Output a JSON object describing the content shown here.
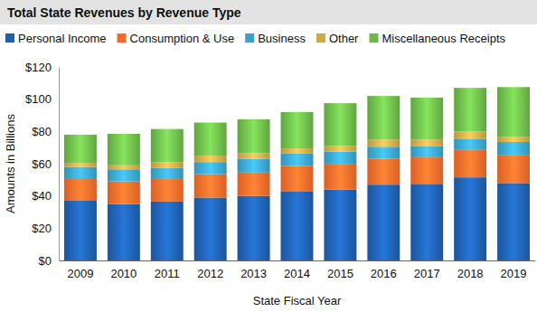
{
  "chart_data": {
    "type": "bar",
    "stacked": true,
    "grid": false,
    "title": "Total State Revenues by Revenue Type",
    "xlabel": "State Fiscal Year",
    "ylabel": "Amounts in Billions",
    "categories": [
      "2009",
      "2010",
      "2011",
      "2012",
      "2013",
      "2014",
      "2015",
      "2016",
      "2017",
      "2018",
      "2019"
    ],
    "series": [
      {
        "name": "Personal Income",
        "color": "#1f5fae",
        "values": [
          37,
          35,
          36.5,
          39,
          40,
          43,
          44,
          47,
          47.5,
          51.5,
          48
        ]
      },
      {
        "name": "Consumption & Use",
        "color": "#f26b2a",
        "values": [
          14,
          14,
          14,
          14.5,
          14.5,
          15.5,
          15.5,
          16,
          16.5,
          17,
          17.5
        ]
      },
      {
        "name": "Business",
        "color": "#3aa3c9",
        "values": [
          7,
          7.5,
          7,
          7.5,
          8.5,
          8,
          8,
          7.5,
          7,
          7,
          8
        ]
      },
      {
        "name": "Other",
        "color": "#c9a94a",
        "values": [
          2.5,
          2.5,
          3.5,
          4,
          3.5,
          3,
          3.5,
          4.5,
          4,
          4.5,
          3
        ]
      },
      {
        "name": "Miscellaneous Receipts",
        "color": "#6cb84a",
        "values": [
          17.5,
          19.5,
          20.5,
          20.5,
          21,
          22.5,
          26.5,
          27,
          26,
          27,
          31
        ]
      }
    ],
    "ylim": [
      0,
      120
    ],
    "yticks": [
      {
        "value": 0,
        "label": "$0"
      },
      {
        "value": 20,
        "label": "$20"
      },
      {
        "value": 40,
        "label": "$40"
      },
      {
        "value": 60,
        "label": "$60"
      },
      {
        "value": 80,
        "label": "$80"
      },
      {
        "value": 100,
        "label": "$100"
      },
      {
        "value": 120,
        "label": "$120"
      }
    ]
  }
}
